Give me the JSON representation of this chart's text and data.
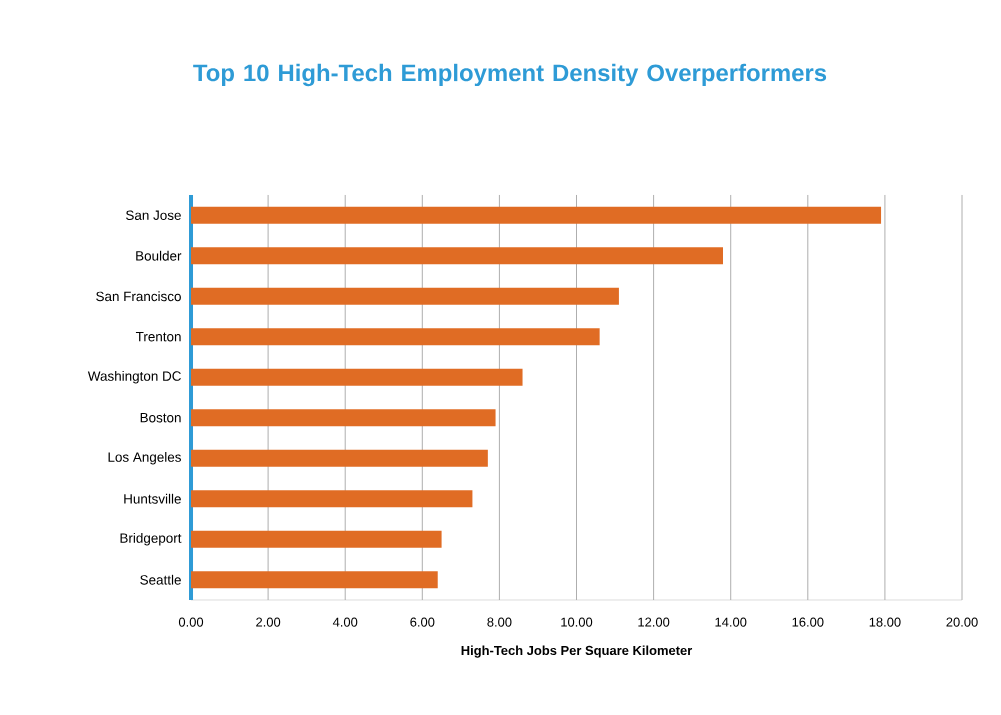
{
  "chart_data": {
    "type": "bar",
    "orientation": "horizontal",
    "title": "Top 10 High-Tech Employment Density Overperformers",
    "xlabel": "High-Tech Jobs Per Square Kilometer",
    "categories": [
      "San Jose",
      "Boulder",
      "San Francisco",
      "Trenton",
      "Washington DC",
      "Boston",
      "Los Angeles",
      "Huntsville",
      "Bridgeport",
      "Seattle"
    ],
    "values": [
      17.9,
      13.8,
      11.1,
      10.6,
      8.6,
      7.9,
      7.7,
      7.3,
      6.5,
      6.4
    ],
    "color": "#e06c24",
    "xlim": [
      0,
      20
    ],
    "xticks": [
      {
        "value": 0,
        "label": "0.00"
      },
      {
        "value": 2,
        "label": "2.00"
      },
      {
        "value": 4,
        "label": "4.00"
      },
      {
        "value": 6,
        "label": "6.00"
      },
      {
        "value": 8,
        "label": "8.00"
      },
      {
        "value": 10,
        "label": "10.00"
      },
      {
        "value": 12,
        "label": "12.00"
      },
      {
        "value": 14,
        "label": "14.00"
      },
      {
        "value": 16,
        "label": "16.00"
      },
      {
        "value": 18,
        "label": "18.00"
      },
      {
        "value": 20,
        "label": "20.00"
      }
    ],
    "grid": "x"
  }
}
